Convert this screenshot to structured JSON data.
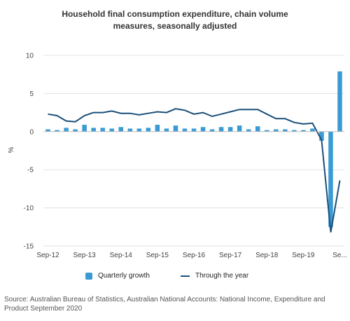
{
  "chart_data": {
    "type": "bar+line",
    "title": [
      "Household final consumption expenditure, chain volume",
      "measures, seasonally adjusted"
    ],
    "ylabel": "%",
    "ylim": [
      -15,
      10
    ],
    "yticks": [
      10,
      5,
      0,
      -5,
      -10,
      -15
    ],
    "tick_labels": [
      "Sep-12",
      "Sep-13",
      "Sep-14",
      "Sep-15",
      "Sep-16",
      "Sep-17",
      "Sep-18",
      "Sep-19",
      "Se..."
    ],
    "categories": [
      "Sep-12",
      "Dec-12",
      "Mar-13",
      "Jun-13",
      "Sep-13",
      "Dec-13",
      "Mar-14",
      "Jun-14",
      "Sep-14",
      "Dec-14",
      "Mar-15",
      "Jun-15",
      "Sep-15",
      "Dec-15",
      "Mar-16",
      "Jun-16",
      "Sep-16",
      "Dec-16",
      "Mar-17",
      "Jun-17",
      "Sep-17",
      "Dec-17",
      "Mar-18",
      "Jun-18",
      "Sep-18",
      "Dec-18",
      "Mar-19",
      "Jun-19",
      "Sep-19",
      "Dec-19",
      "Mar-20",
      "Jun-20",
      "Sep-20"
    ],
    "series": [
      {
        "name": "Quarterly growth",
        "type": "bar",
        "color": "#3a9bd4",
        "values": [
          0.3,
          0.2,
          0.5,
          0.3,
          0.9,
          0.5,
          0.5,
          0.4,
          0.6,
          0.4,
          0.4,
          0.5,
          0.9,
          0.4,
          0.8,
          0.4,
          0.4,
          0.6,
          0.3,
          0.6,
          0.6,
          0.8,
          0.3,
          0.7,
          0.2,
          0.3,
          0.3,
          0.2,
          0.2,
          0.4,
          -1.2,
          -12.5,
          7.9
        ]
      },
      {
        "name": "Through the year",
        "type": "line",
        "color": "#1c4f7a",
        "values": [
          2.3,
          2.1,
          1.4,
          1.3,
          2.1,
          2.5,
          2.5,
          2.7,
          2.4,
          2.4,
          2.2,
          2.4,
          2.6,
          2.5,
          3.0,
          2.8,
          2.3,
          2.5,
          2.0,
          2.3,
          2.6,
          2.9,
          2.9,
          2.9,
          2.3,
          1.7,
          1.7,
          1.2,
          1.0,
          1.1,
          -1.1,
          -13.2,
          -6.4
        ]
      }
    ],
    "grid": false,
    "legend_position": "bottom"
  },
  "legend": {
    "bar_label": "Quarterly growth",
    "line_label": "Through the year"
  },
  "source": "Source: Australian Bureau of Statistics, Australian National Accounts: National Income, Expenditure and Product September 2020"
}
